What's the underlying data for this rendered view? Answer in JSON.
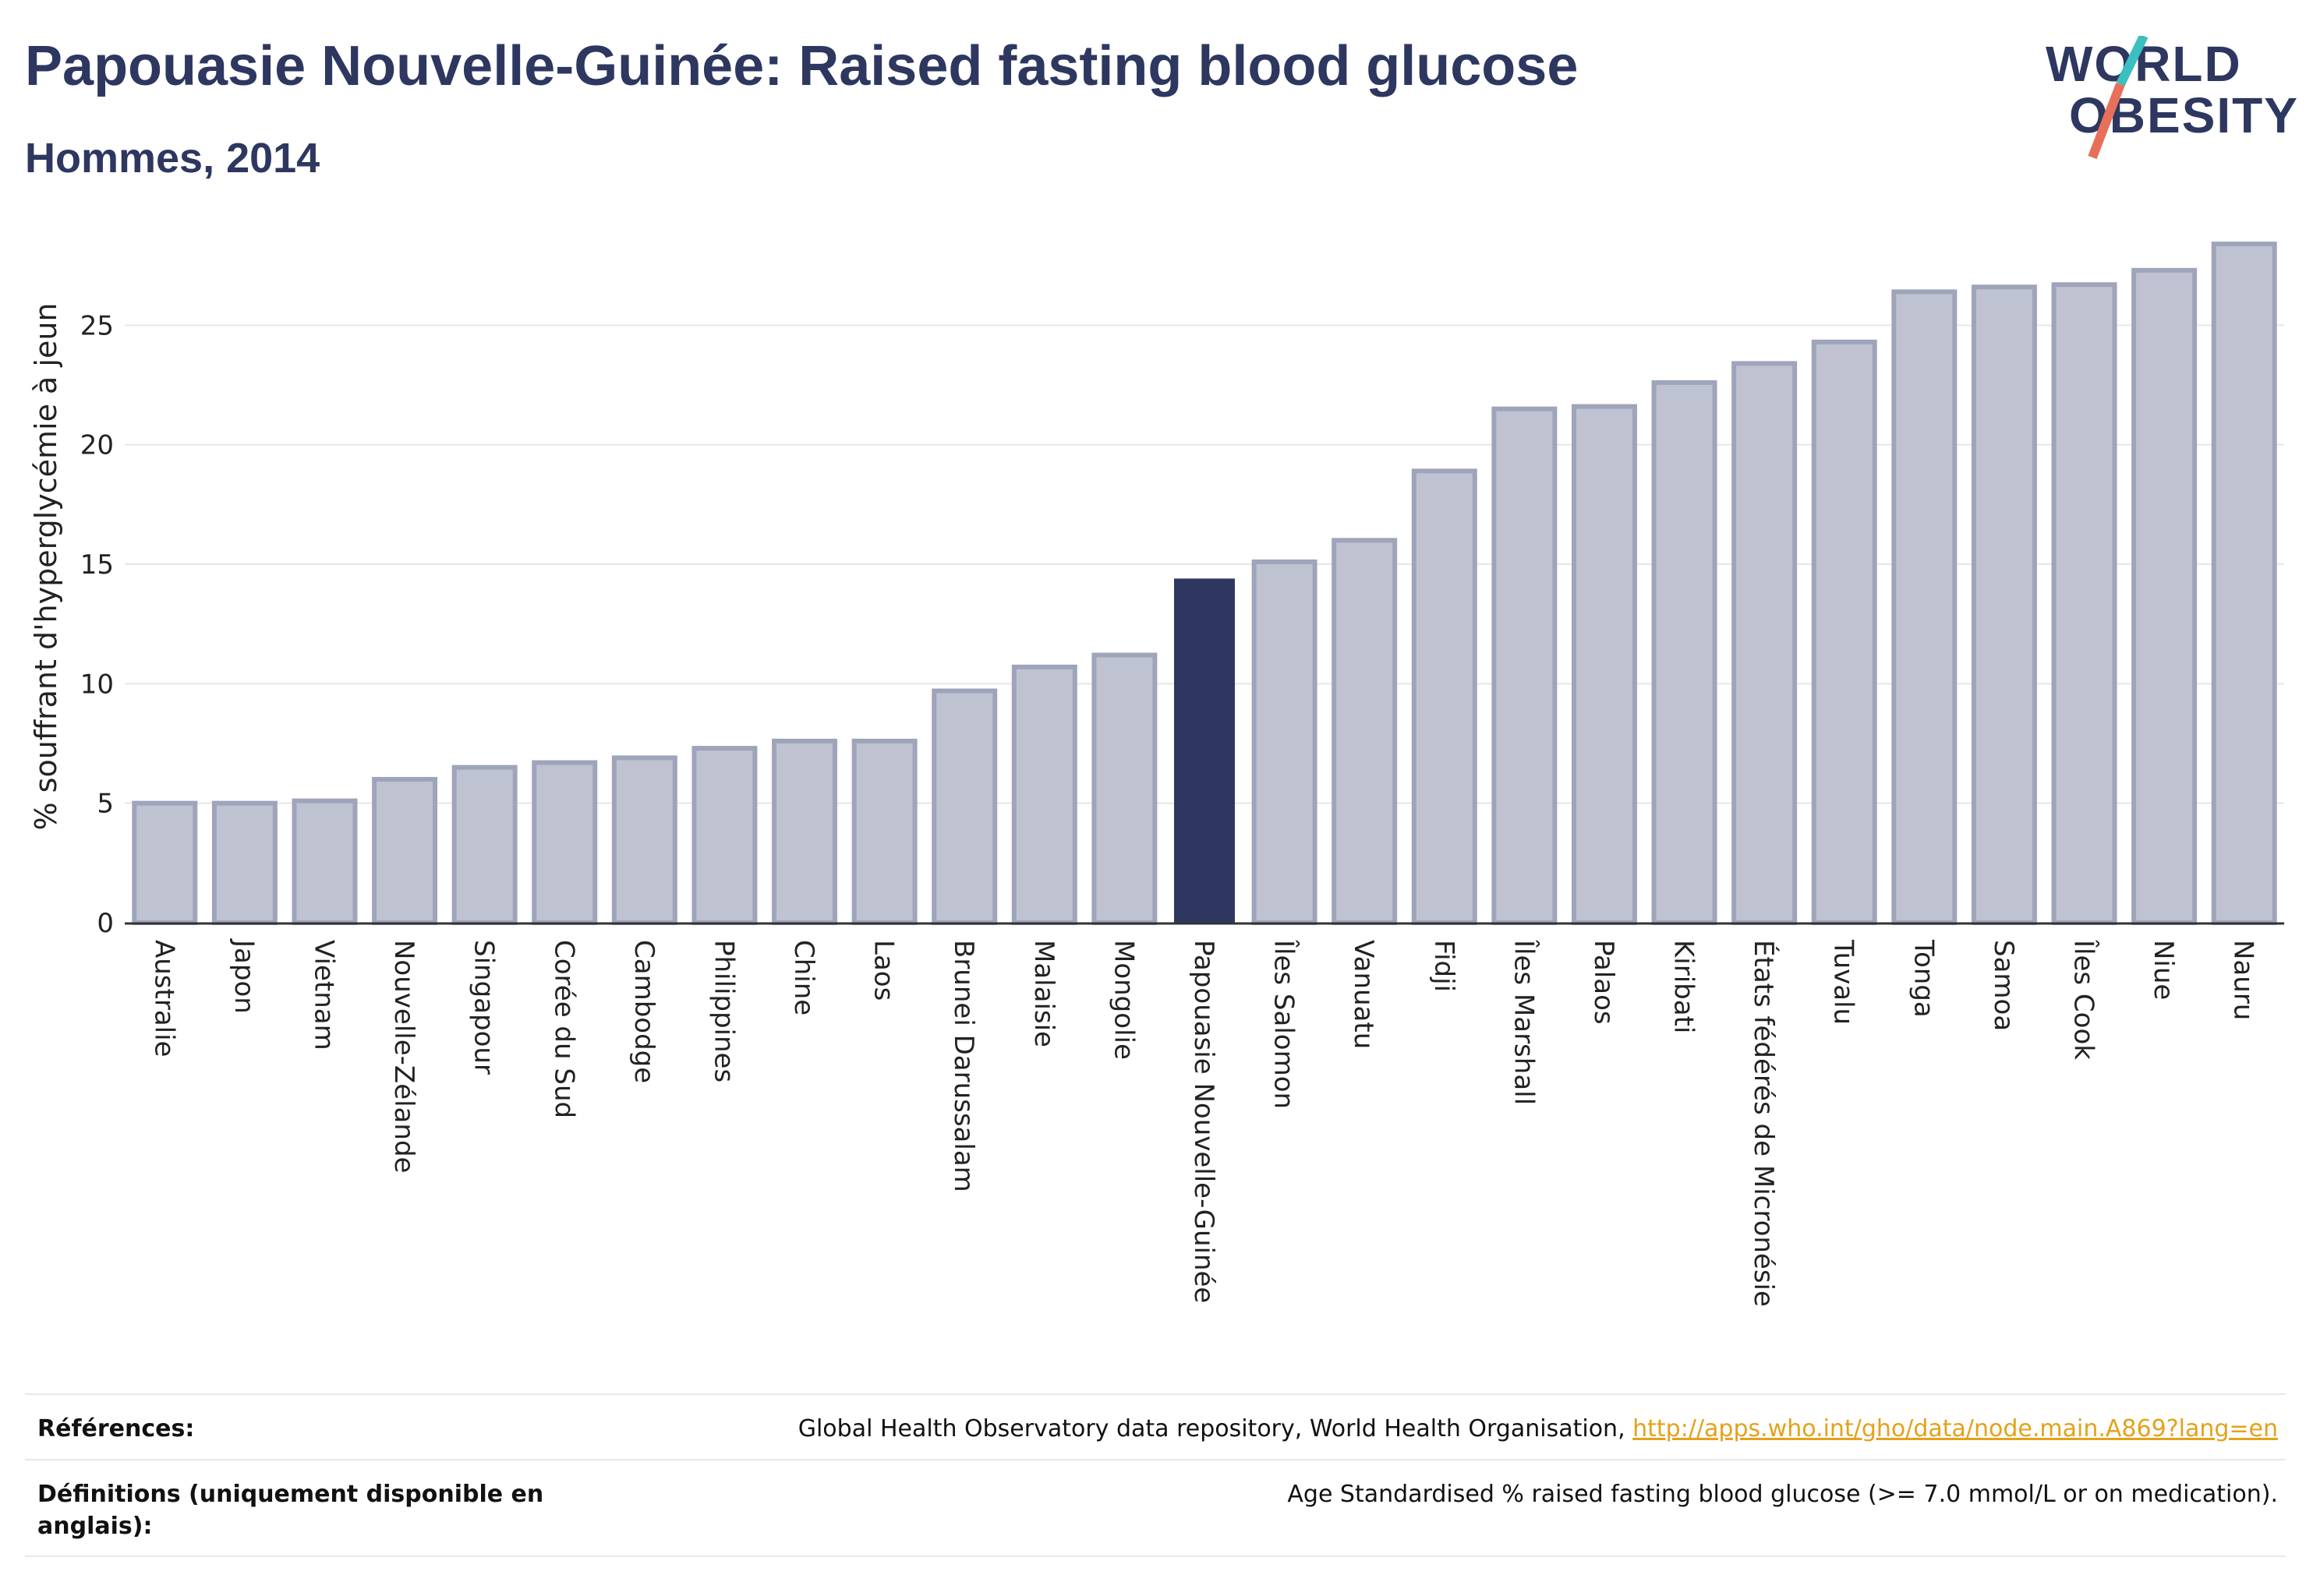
{
  "header": {
    "title": "Papouasie Nouvelle-Guinée: Raised fasting blood glucose",
    "subtitle": "Hommes, 2014"
  },
  "logo": {
    "line1": "WORLD",
    "line2": "OBESITY",
    "colors": {
      "text": "#2d3760",
      "slash_top": "#3bbfbf",
      "slash_bottom": "#e8705a"
    }
  },
  "colors": {
    "bar": "#bfc3d1",
    "bar_stroke": "#9ea4ba",
    "highlight": "#2d3760",
    "axis": "#333333",
    "grid": "#e6e6e6"
  },
  "chart_data": {
    "type": "bar",
    "ylabel": "% souffrant d'hyperglycémie à jeun",
    "ylim": [
      0,
      28.5
    ],
    "yticks": [
      0,
      5,
      10,
      15,
      20,
      25
    ],
    "grid": true,
    "highlight": "Papouasie Nouvelle-Guinée",
    "categories": [
      "Australie",
      "Japon",
      "Vietnam",
      "Nouvelle-Zélande",
      "Singapour",
      "Corée du Sud",
      "Cambodge",
      "Philippines",
      "Chine",
      "Laos",
      "Brunei Darussalam",
      "Malaisie",
      "Mongolie",
      "Papouasie Nouvelle-Guinée",
      "Îles Salomon",
      "Vanuatu",
      "Fidji",
      "Îles Marshall",
      "Palaos",
      "Kiribati",
      "États fédérés de Micronésie",
      "Tuvalu",
      "Tonga",
      "Samoa",
      "Îles Cook",
      "Niue",
      "Nauru"
    ],
    "values": [
      5.0,
      5.0,
      5.1,
      6.0,
      6.5,
      6.7,
      6.9,
      7.3,
      7.6,
      7.6,
      9.7,
      10.7,
      11.2,
      14.4,
      15.1,
      16.0,
      18.9,
      21.5,
      21.6,
      22.6,
      23.4,
      24.3,
      26.4,
      26.6,
      26.7,
      27.3,
      28.4
    ]
  },
  "references": {
    "refs_label": "Références:",
    "refs_text": "Global Health Observatory data repository, World Health Organisation, ",
    "refs_link": "http://apps.who.int/gho/data/node.main.A869?lang=en",
    "defs_label_line1": "Définitions (uniquement disponible en",
    "defs_label_line2": "anglais):",
    "defs_text": "Age Standardised % raised fasting blood glucose (>= 7.0 mmol/L or on medication)."
  }
}
